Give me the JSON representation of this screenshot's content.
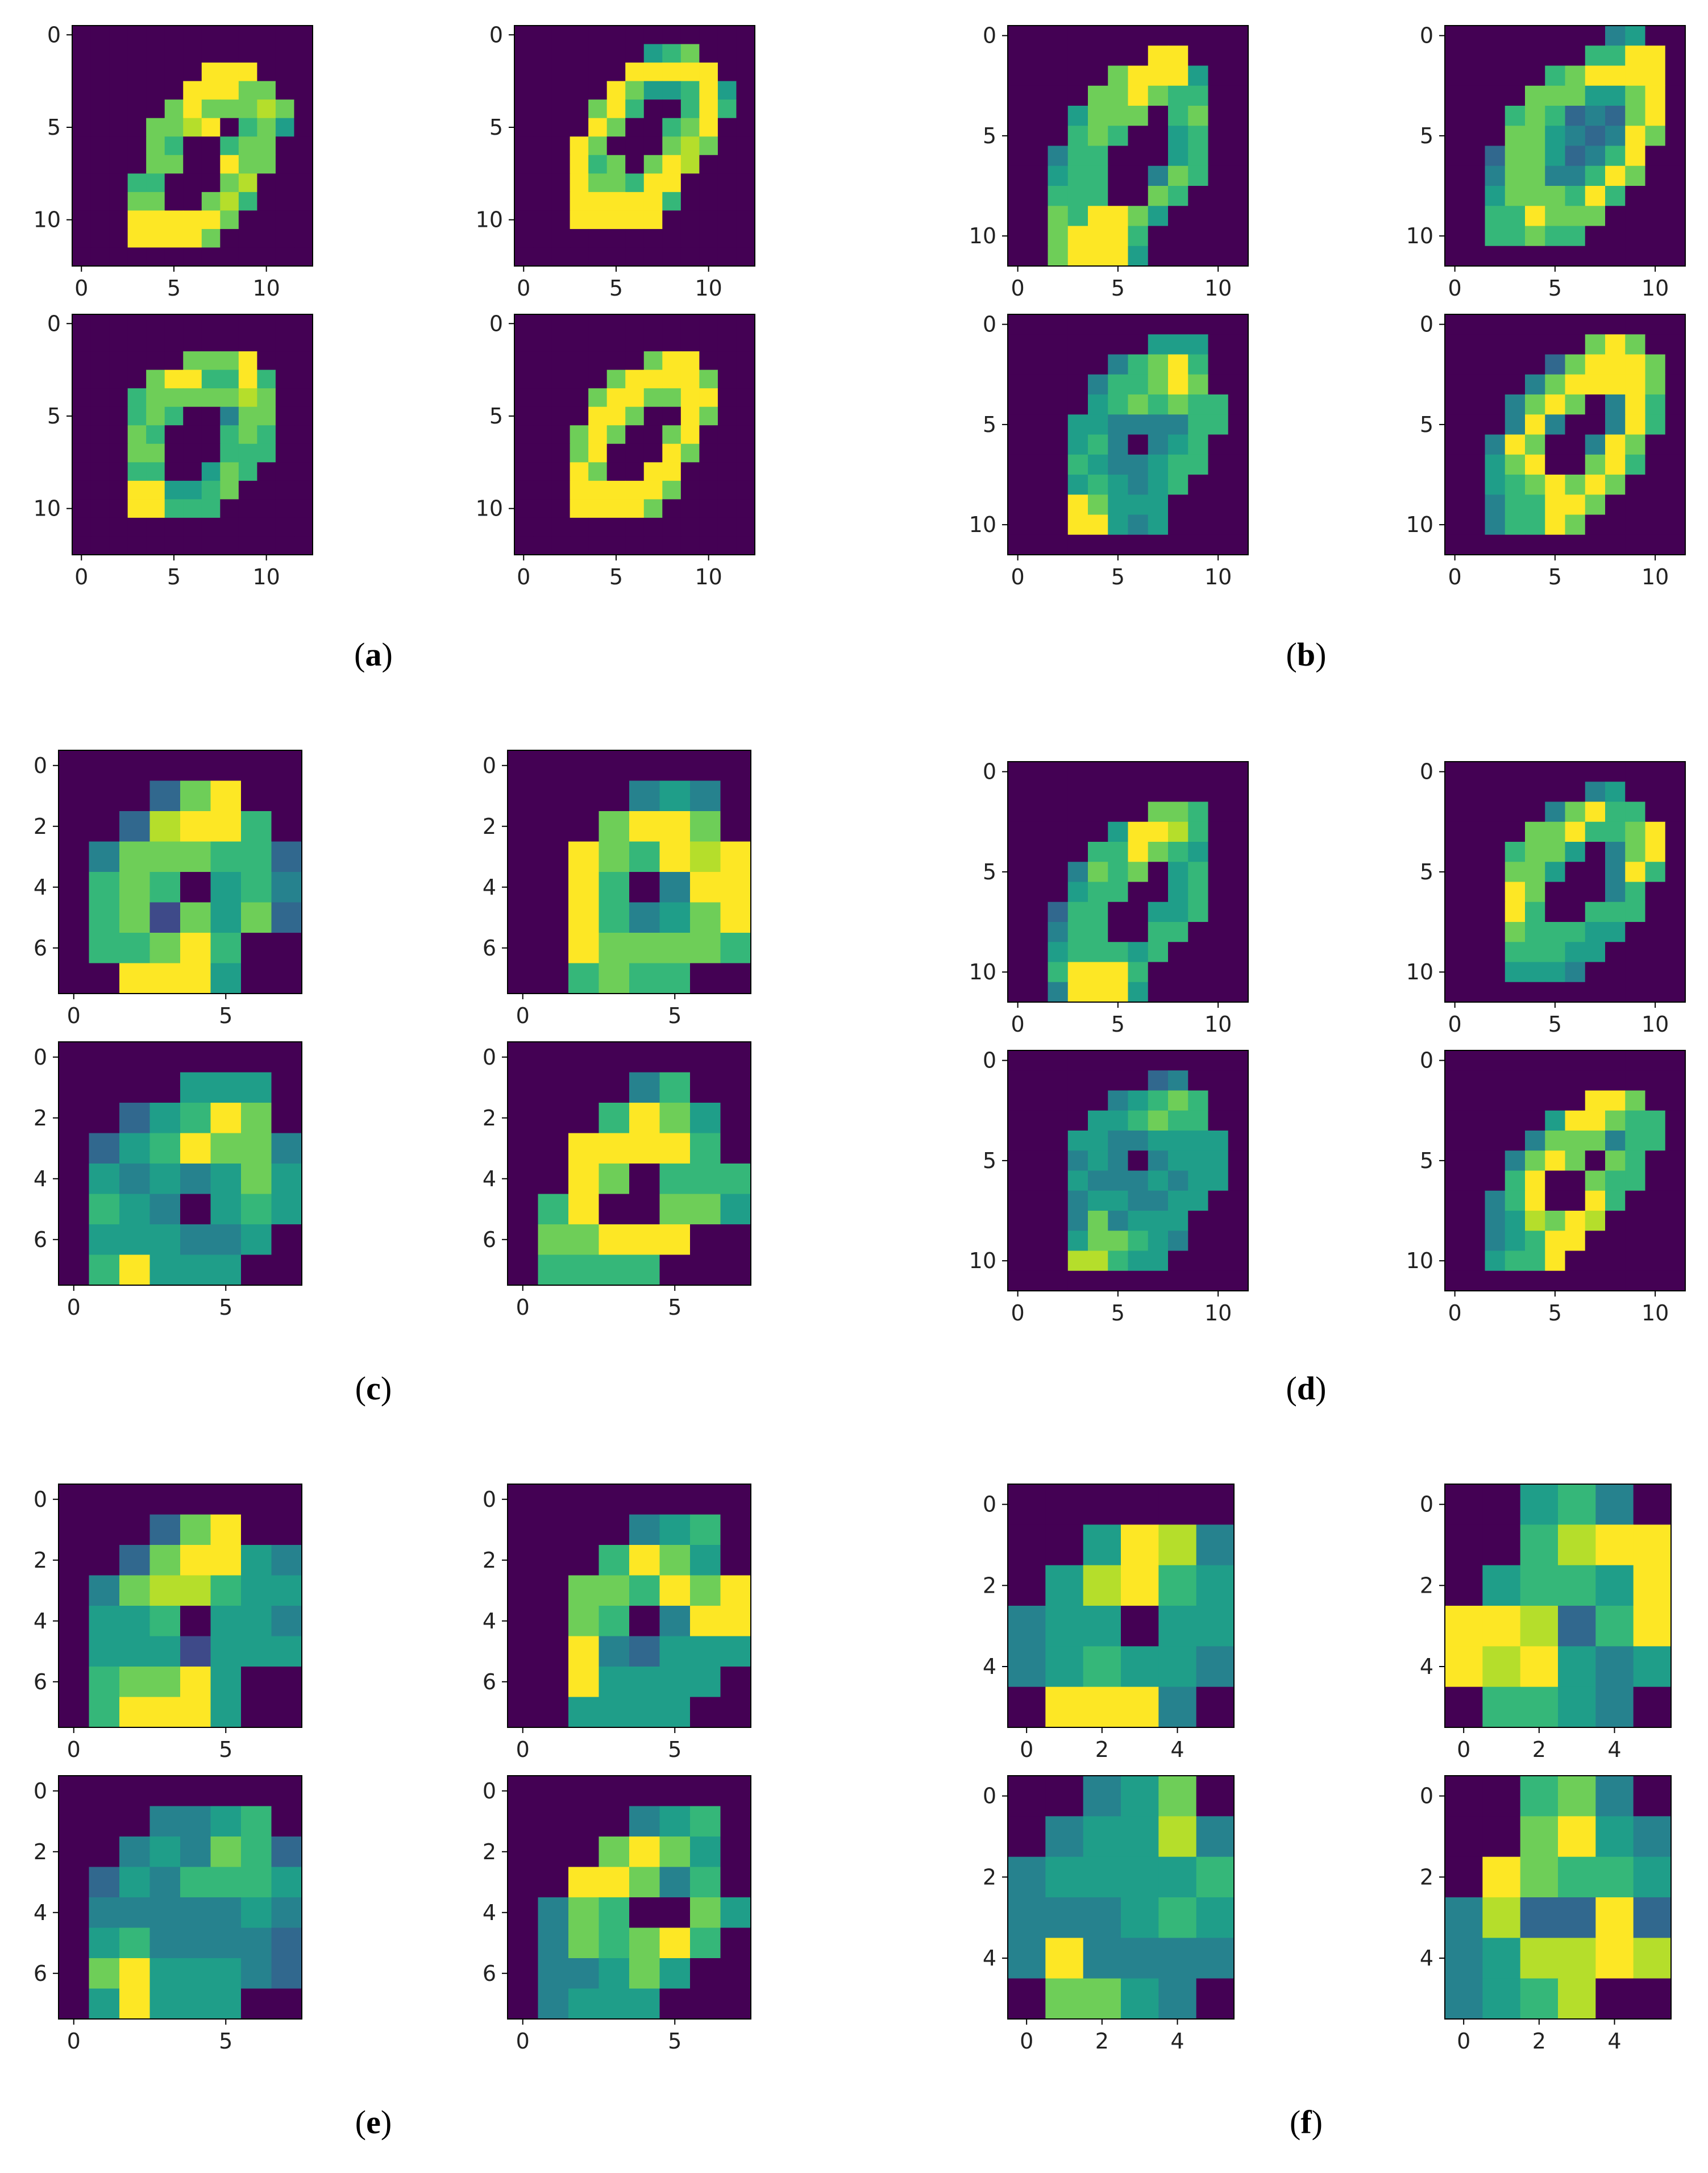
{
  "colormap": {
    "name": "viridis",
    "stops": [
      "#440154",
      "#482878",
      "#3e4a89",
      "#31688e",
      "#26828e",
      "#1f9e89",
      "#35b779",
      "#6ece58",
      "#b5de2b",
      "#fde725"
    ]
  },
  "panels": [
    {
      "id": "a",
      "caption": "a",
      "image_size": 13,
      "xticks": [
        "0",
        "5",
        "10"
      ],
      "yticks": [
        "0",
        "5",
        "10"
      ],
      "tick_values": [
        0,
        5,
        10
      ],
      "images": [
        [
          "0000000000000",
          "0000000000000",
          "0000000999000",
          "0000009997700",
          "0000079777870",
          "0000778906750",
          "0000760067700",
          "0000770097700",
          "0006600078000",
          "0007700786000",
          "0009999970000",
          "0009999700000",
          "0000000000000"
        ],
        [
          "0000000000000",
          "0000000567000",
          "0000009999900",
          "0000097556950",
          "0000796006960",
          "0000970067900",
          "0009700078700",
          "0009670798000",
          "0009776990000",
          "0009999960000",
          "0009999900000",
          "0000000000000",
          "0000000000000"
        ],
        [
          "0000000000000",
          "0000000000000",
          "0000007779000",
          "0000799669600",
          "0006777778700",
          "0006760047700",
          "0007600067600",
          "0007700066600",
          "0006600576000",
          "0009955670000",
          "0009966600000",
          "0000000000000",
          "0000000000000"
        ],
        [
          "0000000000000",
          "0000000000000",
          "0000000799000",
          "0000079999700",
          "0000799779900",
          "0000997009700",
          "0007970079000",
          "0007900097000",
          "0009700990000",
          "0009999970000",
          "0009999700000",
          "0000000000000",
          "0000000000000"
        ]
      ]
    },
    {
      "id": "b",
      "caption": "b",
      "image_size": 12,
      "xticks": [
        "0",
        "5",
        "10"
      ],
      "yticks": [
        "0",
        "5",
        "10"
      ],
      "tick_values": [
        0,
        5,
        10
      ],
      "images": [
        [
          "000000000000",
          "000000099000",
          "000007999500",
          "000077976600",
          "000577706700",
          "000676005600",
          "004660005600",
          "005660047600",
          "006660076000",
          "007699750000",
          "007999600000",
          "007999500000"
        ],
        [
          "000000004500",
          "000000066990",
          "000006799990",
          "000077755790",
          "000676343790",
          "000775434970",
          "003775346900",
          "004774469700",
          "005777696000",
          "006697770000",
          "006676600000",
          "000000000000"
        ],
        [
          "000000000000",
          "000000055500",
          "000004679600",
          "000046679700",
          "000056767660",
          "000554444660",
          "000564045600",
          "000654456600",
          "000565456000",
          "000975550000",
          "000995450000",
          "000000000000"
        ],
        [
          "000000000000",
          "000000079700",
          "000003799970",
          "000047999970",
          "000479704960",
          "000494004960",
          "004970049700",
          "005790079600",
          "005679797000",
          "004669970000",
          "004669700000",
          "000000000000"
        ]
      ]
    },
    {
      "id": "c",
      "caption": "c",
      "image_size": 8,
      "xticks": [
        "0",
        "5"
      ],
      "yticks": [
        "0",
        "2",
        "4",
        "6"
      ],
      "tick_values": [
        0,
        5
      ],
      "ytick_values": [
        0,
        2,
        4,
        6
      ],
      "images": [
        [
          "00000000",
          "00037900",
          "00389960",
          "04777663",
          "06760564",
          "06727573",
          "06679600",
          "00999500"
        ],
        [
          "00000000",
          "00004540",
          "00079970",
          "00976989",
          "00960499",
          "00964579",
          "00977776",
          "00676600"
        ],
        [
          "00000000",
          "00005550",
          "00356970",
          "03569774",
          "05454575",
          "06540565",
          "05554450",
          "06955500"
        ],
        [
          "00000000",
          "00004600",
          "00069750",
          "00999960",
          "00970666",
          "06900775",
          "07799900",
          "06666000"
        ]
      ]
    },
    {
      "id": "d",
      "caption": "d",
      "image_size": 12,
      "xticks": [
        "0",
        "5",
        "10"
      ],
      "yticks": [
        "0",
        "5",
        "10"
      ],
      "tick_values": [
        0,
        5,
        10
      ],
      "images": [
        [
          "000000000000",
          "000000000000",
          "000000077600",
          "000005998600",
          "000066976500",
          "000476705600",
          "000566005600",
          "003660055600",
          "004660066000",
          "005666560000",
          "006999600000",
          "004999500000"
        ],
        [
          "000000000000",
          "000000045000",
          "000004796600",
          "000077966790",
          "000677504790",
          "000775004960",
          "000970004600",
          "000960066600",
          "000766655000",
          "000666550000",
          "000555400000",
          "000000000000"
        ],
        [
          "000000000000",
          "000000034000",
          "000004567600",
          "000055676600",
          "000554455550",
          "000454045550",
          "000544454550",
          "000455445500",
          "000474555000",
          "000577654000",
          "000886550000",
          "000000000000"
        ],
        [
          "000000000000",
          "000000000000",
          "000000099700",
          "000005997660",
          "000047774660",
          "000479707600",
          "000690076600",
          "004690096000",
          "004587980000",
          "004569900000",
          "005669000000",
          "000000000000"
        ]
      ]
    },
    {
      "id": "e",
      "caption": "e",
      "image_size": 8,
      "xticks": [
        "0",
        "5"
      ],
      "yticks": [
        "0",
        "2",
        "4",
        "6"
      ],
      "tick_values": [
        0,
        5
      ],
      "ytick_values": [
        0,
        2,
        4,
        6
      ],
      "images": [
        [
          "00000000",
          "00037900",
          "00379954",
          "04788655",
          "05560554",
          "05552555",
          "06779500",
          "06999500"
        ],
        [
          "00000000",
          "00004560",
          "00069750",
          "00776979",
          "00760499",
          "00943555",
          "00955550",
          "00555500"
        ],
        [
          "00000000",
          "00044560",
          "00454763",
          "03546665",
          "04444454",
          "05644443",
          "07955543",
          "05955500"
        ],
        [
          "00000000",
          "00004560",
          "00079750",
          "00997460",
          "04760075",
          "04767960",
          "04457500",
          "04555000"
        ]
      ]
    },
    {
      "id": "f",
      "caption": "f",
      "image_size": 6,
      "xticks": [
        "0",
        "2",
        "4"
      ],
      "yticks": [
        "0",
        "2",
        "4"
      ],
      "tick_values": [
        0,
        2,
        4
      ],
      "images": [
        [
          "000000",
          "005984",
          "058965",
          "455055",
          "456554",
          "099940"
        ],
        [
          "005640",
          "006899",
          "056659",
          "998369",
          "989545",
          "066540"
        ],
        [
          "004570",
          "045584",
          "455556",
          "444565",
          "494444",
          "077540"
        ],
        [
          "006740",
          "007954",
          "097665",
          "483393",
          "458898",
          "456800"
        ]
      ]
    }
  ],
  "chart_data": {
    "type": "heatmap",
    "colorscale": "viridis",
    "value_range": [
      0,
      9
    ],
    "note_units": "pixel intensity level 0-9 per cell"
  }
}
